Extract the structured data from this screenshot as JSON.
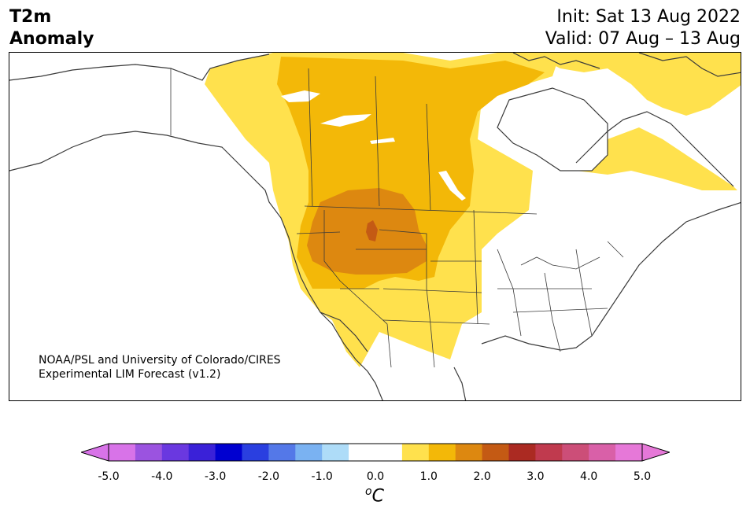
{
  "title": {
    "variable": "T2m",
    "metric": "Anomaly",
    "init": "Init: Sat 13 Aug 2022",
    "valid": "Valid: 07 Aug – 13 Aug"
  },
  "credit": {
    "line1": "NOAA/PSL and University of Colorado/CIRES",
    "line2": "Experimental LIM Forecast (v1.2)"
  },
  "colorbar": {
    "unit_label": "C",
    "unit_sup": "o",
    "ticks": [
      "-5.0",
      "-4.0",
      "-3.0",
      "-2.0",
      "-1.0",
      "0.0",
      "1.0",
      "2.0",
      "3.0",
      "4.0",
      "5.0"
    ],
    "colors": [
      "#d873e8",
      "#9b53e0",
      "#6a38e0",
      "#3a21d8",
      "#0000d0",
      "#2a3fe0",
      "#5478e8",
      "#7ab2f2",
      "#aedcf8",
      "#ffffff",
      "#ffffff",
      "#ffe14d",
      "#f3b808",
      "#dd8810",
      "#c45a14",
      "#ab2a22",
      "#c03a4e",
      "#cc4e78",
      "#d960a8",
      "#e678d8"
    ],
    "extend_low_color": "#d873e8",
    "extend_high_color": "#e678d8"
  },
  "map": {
    "region": "North America",
    "anomaly_levels": {
      "light_yellow": "#ffe14d",
      "gold": "#f3b808",
      "orange": "#dd8810",
      "red_orange": "#c45a14"
    }
  }
}
